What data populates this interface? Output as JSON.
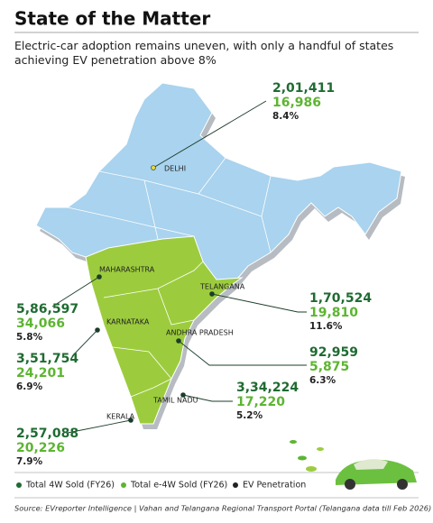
{
  "header": {
    "title": "State of the Matter",
    "subtitle": "Electric-car adoption remains uneven, with only a handful of states achieving EV penetration above 8%"
  },
  "states": [
    {
      "name": "DELHI",
      "total": "2,01,411",
      "ev": "16,986",
      "penetration": "8.4%"
    },
    {
      "name": "MAHARASHTRA",
      "total": "5,86,597",
      "ev": "34,066",
      "penetration": "5.8%"
    },
    {
      "name": "TELANGANA",
      "total": "1,70,524",
      "ev": "19,810",
      "penetration": "11.6%"
    },
    {
      "name": "KARNATAKA",
      "total": "3,51,754",
      "ev": "24,201",
      "penetration": "6.9%"
    },
    {
      "name": "ANDHRA PRADESH",
      "total": "92,959",
      "ev": "5,875",
      "penetration": "6.3%"
    },
    {
      "name": "TAMIL NADU",
      "total": "3,34,224",
      "ev": "17,220",
      "penetration": "5.2%"
    },
    {
      "name": "KERALA",
      "total": "2,57,088",
      "ev": "20,226",
      "penetration": "7.9%"
    }
  ],
  "legend": [
    "Total 4W Sold (FY26)",
    "Total e-4W Sold (FY26)",
    "EV Penetration"
  ],
  "source": "Source: EVreporter Intelligence | Vahan and Telangana Regional Transport Portal (Telangana data till Feb 2026)"
}
